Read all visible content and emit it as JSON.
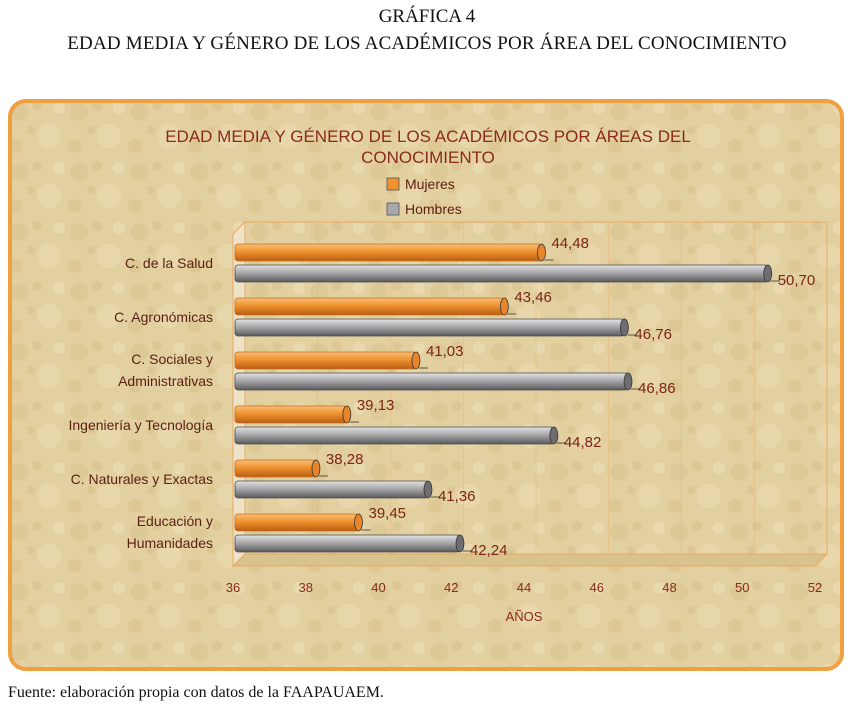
{
  "document": {
    "label": "GRÁFICA 4",
    "title": "EDAD MEDIA Y GÉNERO DE LOS ACADÉMICOS POR ÁREA DEL CONOCIMIENTO",
    "source": "Fuente: elaboración propia con datos de la FAAPAUAEM."
  },
  "colors": {
    "mujeres": "#f0922e",
    "hombres": "#a9a9ab",
    "frame_border": "#f0a040",
    "background": "#e4d2a3",
    "title_text": "#8a2a1c",
    "tick_text": "#8a2a1c",
    "value_text": "#7a2416"
  },
  "chart_data": {
    "type": "bar",
    "orientation": "horizontal",
    "title_lines": [
      "EDAD MEDIA Y GÉNERO DE LOS ACADÉMICOS POR ÁREAS DEL",
      "CONOCIMIENTO"
    ],
    "xlabel": "AÑOS",
    "xlim": [
      36,
      52
    ],
    "xticks": [
      "36",
      "38",
      "40",
      "42",
      "44",
      "46",
      "48",
      "50",
      "52"
    ],
    "legend_position": "top-center",
    "categories": [
      [
        "C. de la Salud"
      ],
      [
        "C. Agronómicas"
      ],
      [
        "C. Sociales y",
        "Administrativas"
      ],
      [
        "Ingeniería y Tecnología"
      ],
      [
        "C. Naturales y Exactas"
      ],
      [
        "Educación y",
        "Humanidades"
      ]
    ],
    "series": [
      {
        "name": "Mujeres",
        "values": [
          44.48,
          43.46,
          41.03,
          39.13,
          38.28,
          39.45
        ],
        "labels": [
          "44,48",
          "43,46",
          "41,03",
          "39,13",
          "38,28",
          "39,45"
        ]
      },
      {
        "name": "Hombres",
        "values": [
          50.7,
          46.76,
          46.86,
          44.82,
          41.36,
          42.24
        ],
        "labels": [
          "50,70",
          "46,76",
          "46,86",
          "44,82",
          "41,36",
          "42,24"
        ]
      }
    ]
  }
}
